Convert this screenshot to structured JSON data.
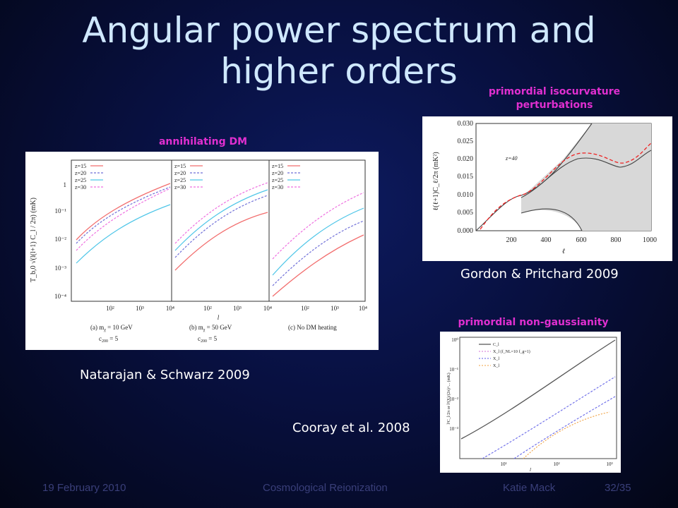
{
  "title": {
    "line1": "Angular power spectrum and",
    "line2": "higher orders"
  },
  "labels": {
    "annihilating": "annihilating DM",
    "isocurvature_1": "primordial isocurvature",
    "isocurvature_2": "perturbations",
    "nongaussianity": "primordial non-gaussianity"
  },
  "captions": {
    "natarajan": "Natarajan & Schwarz 2009",
    "gordon": "Gordon & Pritchard 2009",
    "cooray": "Cooray et al. 2008"
  },
  "footer": {
    "date": "19 February 2010",
    "talk": "Cosmological Reionization",
    "author": "Katie Mack",
    "page": "32/35"
  },
  "colors": {
    "title": "#cfe8ff",
    "label": "#e02fd0",
    "caption": "#ffffff",
    "footer": "#3a3f7a"
  },
  "chart_data": [
    {
      "type": "line",
      "description_source": "Natarajan & Schwarz 2009 three-panel figure",
      "ylabel": "T_b,0 √(l(l+1) C_l / 2π)  (mK)",
      "xlabel": "l",
      "yscale": "log",
      "xscale": "log",
      "ylim": [
        0.0001,
        3
      ],
      "xlim": [
        10,
        10000
      ],
      "xticks": [
        "10²",
        "10³",
        "10⁴"
      ],
      "yticks": [
        "1",
        "10⁻¹",
        "10⁻²",
        "10⁻³",
        "10⁻⁴"
      ],
      "legend": [
        "z=15",
        "z=20",
        "z=25",
        "z=30"
      ],
      "panels": [
        {
          "caption_a": "(a)  m",
          "mass": "= 10 GeV",
          "c200": "= 5",
          "id": "a"
        },
        {
          "caption_a": "(b)  m",
          "mass": "= 50 GeV",
          "c200": "= 5",
          "id": "b"
        },
        {
          "caption_a": "(c)  No DM heating",
          "mass": "",
          "c200": "",
          "id": "c"
        }
      ]
    },
    {
      "type": "area",
      "ylabel": "ℓ(ℓ+1)C_ℓ/2π (mK²)",
      "xlabel": "ℓ",
      "xlim": [
        0,
        1000
      ],
      "ylim": [
        0,
        0.03
      ],
      "xticks": [
        "200",
        "400",
        "600",
        "800",
        "1000"
      ],
      "yticks": [
        "0.030",
        "0.025",
        "0.020",
        "0.015",
        "0.010",
        "0.005",
        "0.000"
      ],
      "annotation": "z=40",
      "center": {
        "x": [
          0,
          100,
          200,
          300,
          400,
          500,
          600,
          700,
          800,
          900,
          1000
        ],
        "y": [
          0.0,
          0.004,
          0.007,
          0.009,
          0.012,
          0.016,
          0.019,
          0.019,
          0.018,
          0.02,
          0.022
        ]
      },
      "upper": {
        "x": [
          0,
          100,
          200,
          300,
          400,
          500,
          600,
          700
        ],
        "y": [
          0.001,
          0.005,
          0.008,
          0.011,
          0.016,
          0.024,
          0.031,
          0.04
        ]
      },
      "lower": {
        "x": [
          250,
          300,
          400,
          500,
          600
        ],
        "y": [
          0.005,
          0.005,
          0.006,
          0.005,
          0.0
        ]
      },
      "dashed": {
        "x": [
          0,
          100,
          200,
          300,
          400,
          500,
          600,
          700,
          800,
          900,
          1000
        ],
        "y": [
          0.0,
          0.004,
          0.008,
          0.01,
          0.014,
          0.019,
          0.021,
          0.021,
          0.02,
          0.021,
          0.024
        ]
      }
    },
    {
      "type": "line",
      "xscale": "log",
      "yscale": "log",
      "xlabel": "l",
      "ylabel": "l²C_l/2π or l³(X)/(2π)^... (mK)",
      "xticks": [
        "10¹",
        "10²",
        "10³"
      ],
      "yticks": [
        "10⁰",
        "10⁻¹",
        "10⁻²",
        "10⁻³"
      ],
      "legend": [
        "C_l",
        "X_l^(NG)  (f_NL=10 f_g=1)",
        "X_l^(1)",
        "X_l^(2)"
      ]
    }
  ]
}
